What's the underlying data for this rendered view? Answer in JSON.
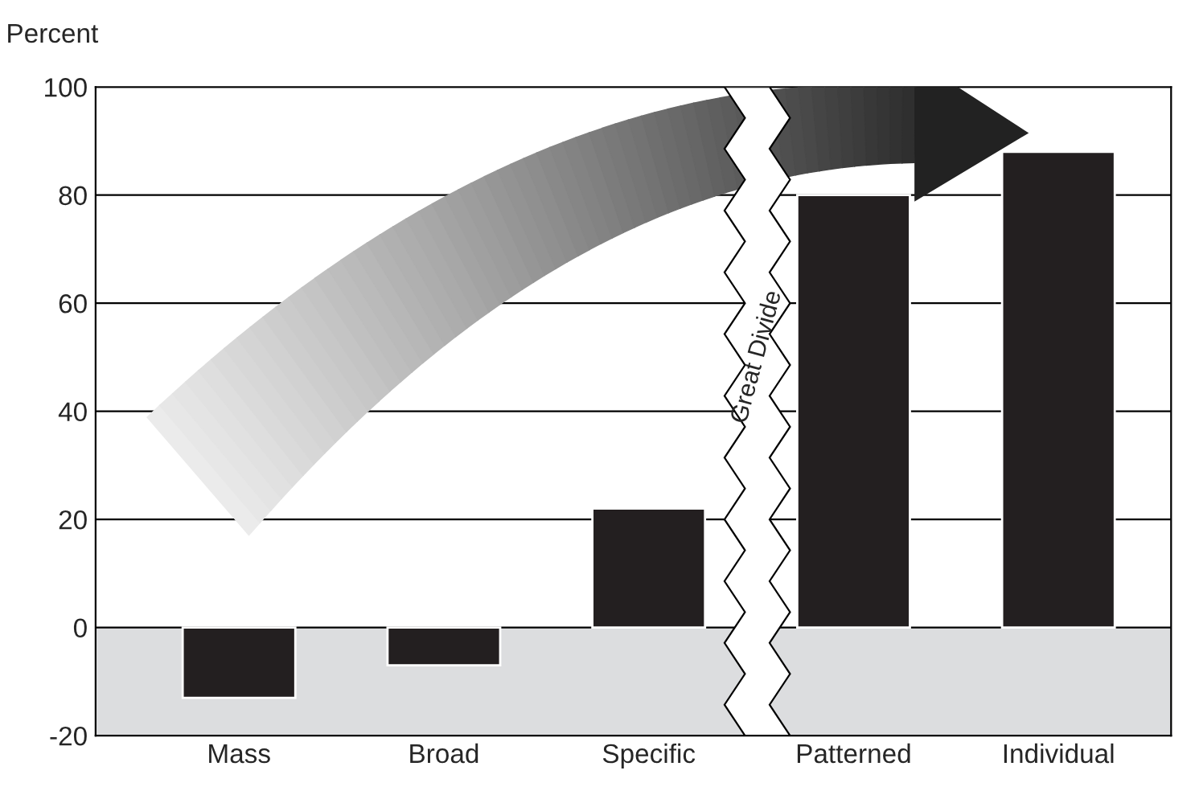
{
  "chart_data": {
    "type": "bar",
    "ylabel": "Percent",
    "categories": [
      "Mass",
      "Broad",
      "Specific",
      "Patterned",
      "Individual"
    ],
    "values": [
      -13,
      -7,
      22,
      80,
      88
    ],
    "color": "#231f20",
    "ylim": [
      -20,
      100
    ],
    "yticks": [
      -20,
      0,
      20,
      40,
      60,
      80,
      100
    ],
    "grid": "y",
    "bands": [
      {
        "axis": "y",
        "from": -20,
        "to": 0,
        "color": "#dcdddf"
      }
    ],
    "annotations": [
      "Great Divide"
    ]
  }
}
